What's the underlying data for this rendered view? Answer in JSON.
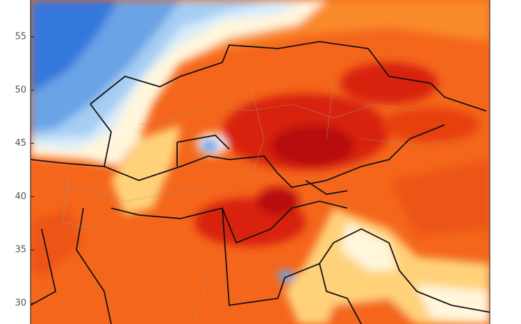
{
  "map": {
    "ylim": [
      28.05,
      58.45
    ],
    "yticks": [
      55,
      50,
      45,
      40,
      35,
      30
    ]
  }
}
